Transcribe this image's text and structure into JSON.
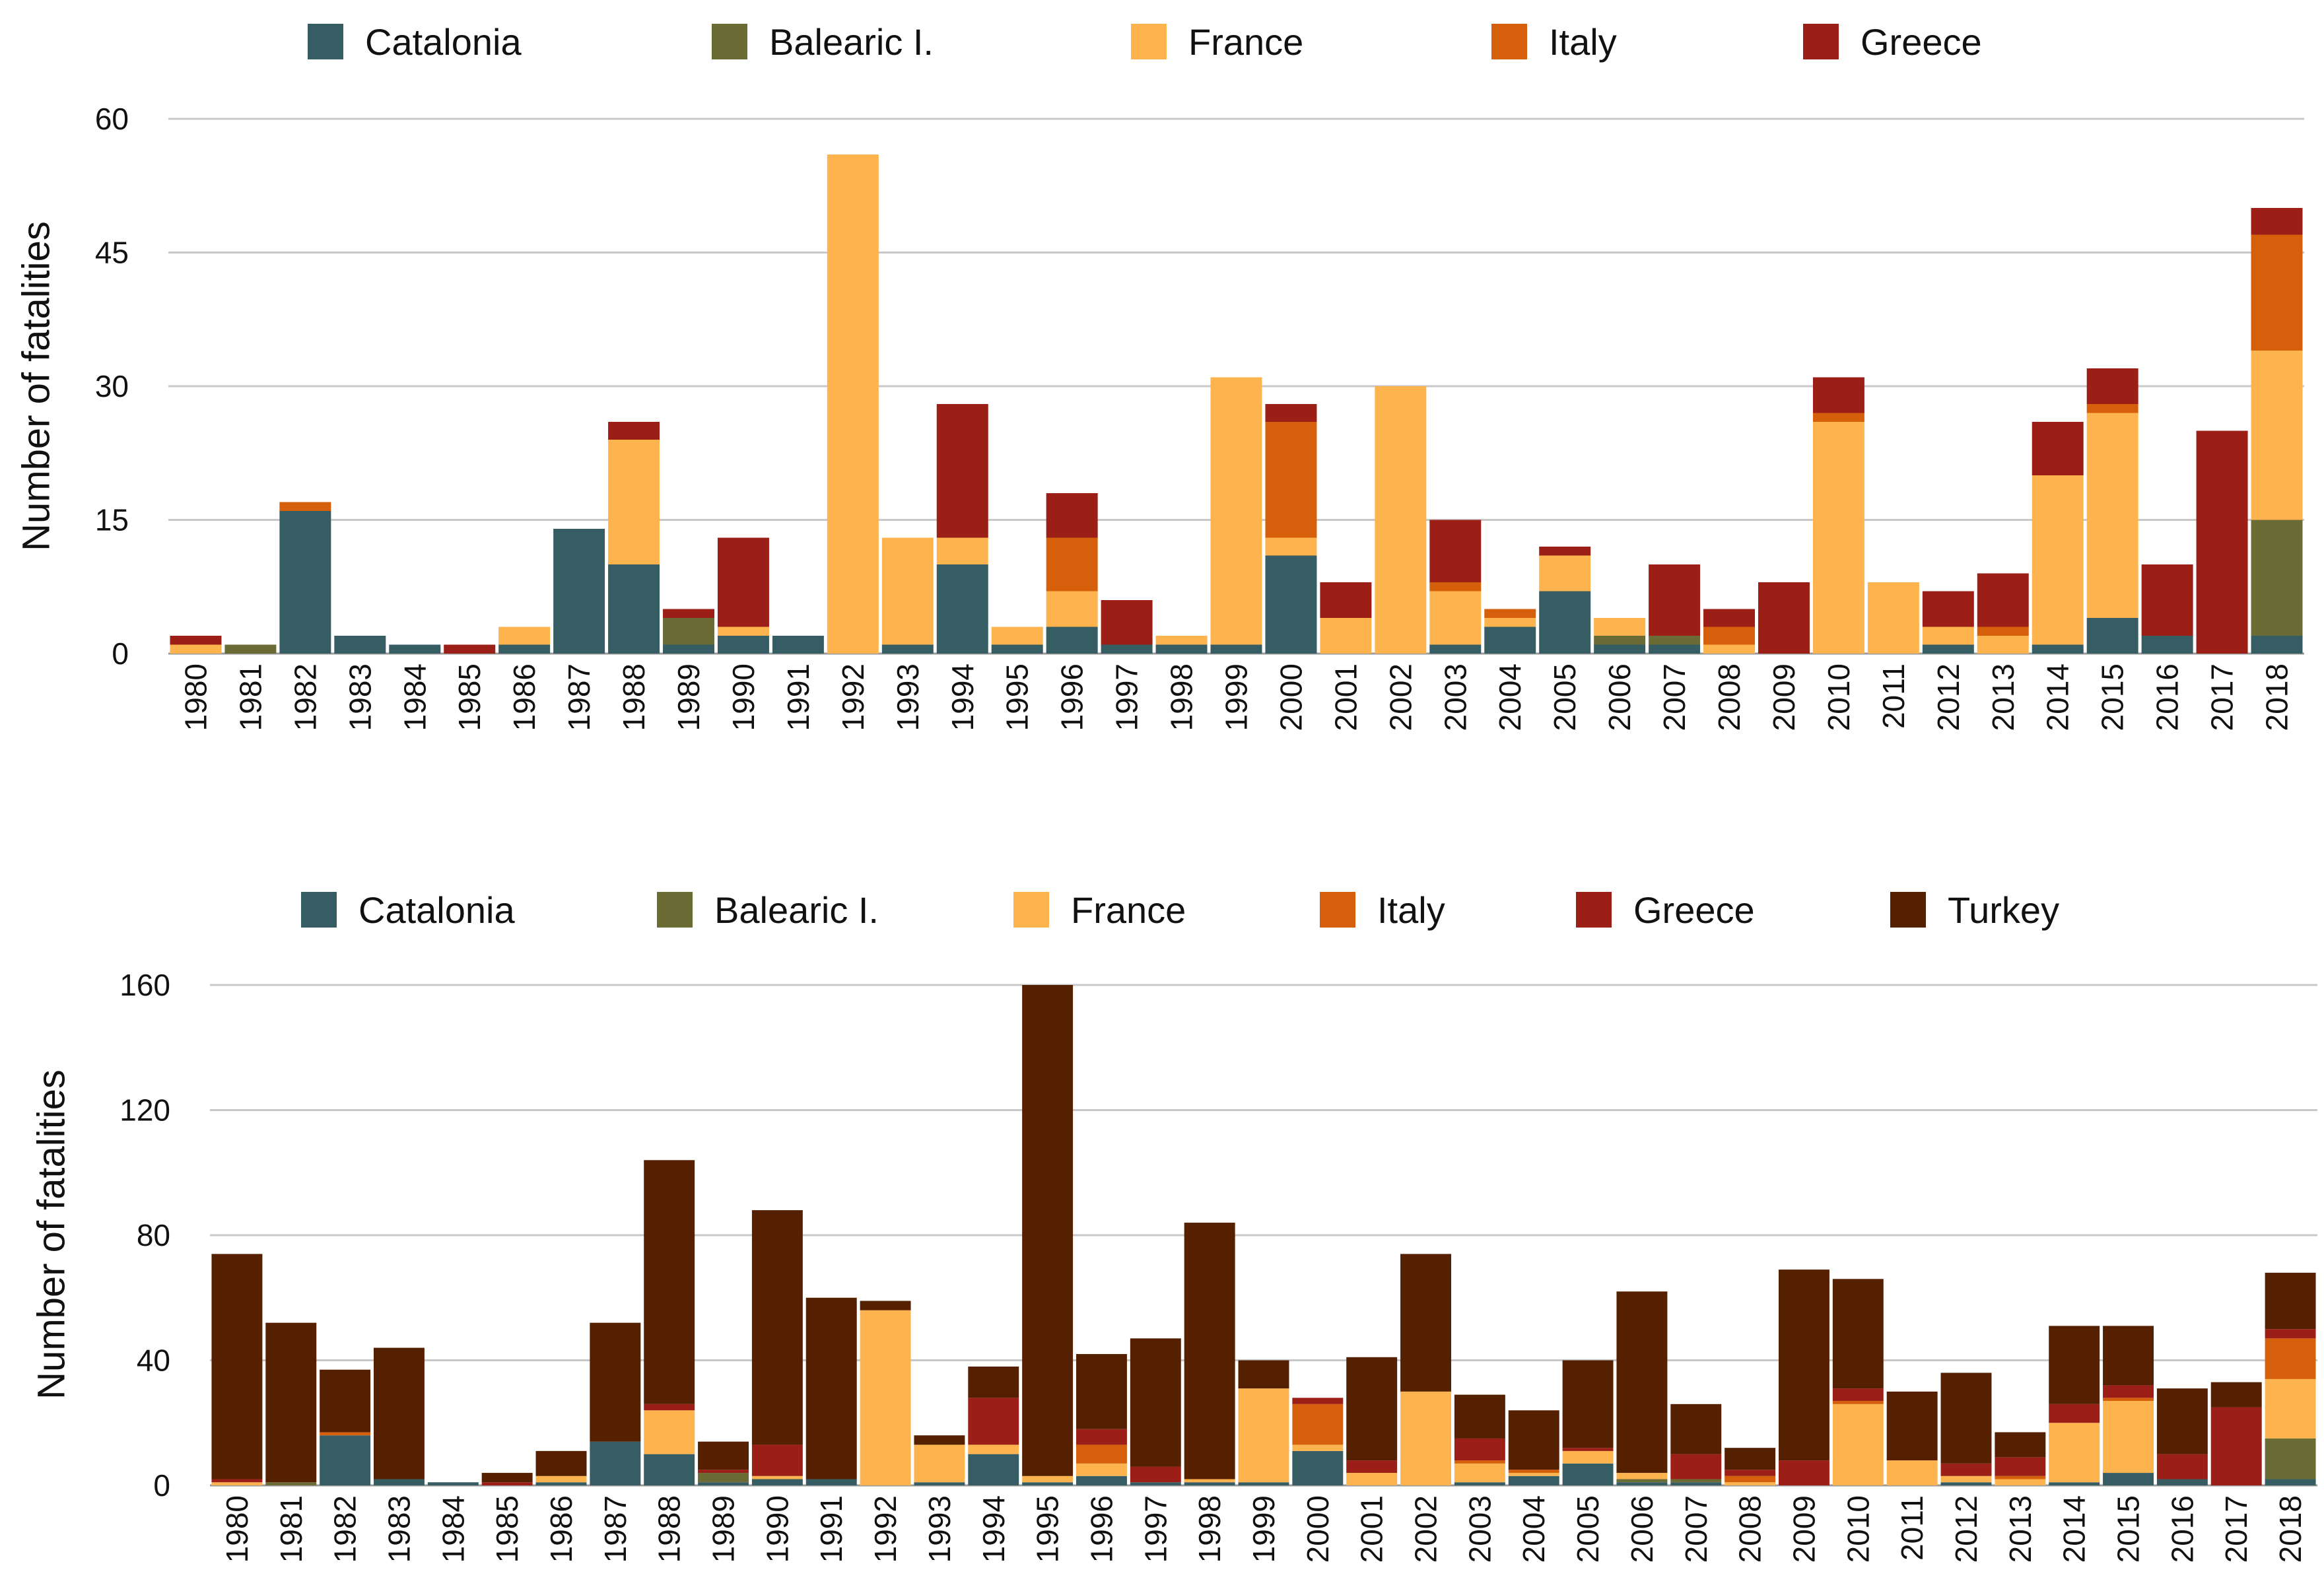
{
  "colors": {
    "Catalonia": "#365d63",
    "Balearic I.": "#6a6b35",
    "France": "#fdb44e",
    "Italy": "#d65f0b",
    "Greece": "#9b1f17",
    "Turkey": "#552000"
  },
  "chart_data": [
    {
      "type": "bar",
      "stacked": true,
      "title": "",
      "xlabel": "",
      "ylabel": "Number of fatalities",
      "ylim": [
        0,
        60
      ],
      "yticks": [
        0,
        15,
        30,
        45,
        60
      ],
      "legend": [
        "Catalonia",
        "Balearic I.",
        "France",
        "Italy",
        "Greece"
      ],
      "legend_position": "top",
      "categories": [
        "1980",
        "1981",
        "1982",
        "1983",
        "1984",
        "1985",
        "1986",
        "1987",
        "1988",
        "1989",
        "1990",
        "1991",
        "1992",
        "1993",
        "1994",
        "1995",
        "1996",
        "1997",
        "1998",
        "1999",
        "2000",
        "2001",
        "2002",
        "2003",
        "2004",
        "2005",
        "2006",
        "2007",
        "2008",
        "2009",
        "2010",
        "2011",
        "2012",
        "2013",
        "2014",
        "2015",
        "2016",
        "2017",
        "2018"
      ],
      "series": [
        {
          "name": "Catalonia",
          "values": [
            0,
            0,
            16,
            2,
            1,
            0,
            1,
            14,
            10,
            1,
            2,
            2,
            0,
            1,
            10,
            1,
            3,
            1,
            1,
            1,
            11,
            0,
            0,
            1,
            3,
            7,
            1,
            1,
            0,
            0,
            0,
            0,
            1,
            0,
            1,
            4,
            2,
            0,
            2
          ]
        },
        {
          "name": "Balearic I.",
          "values": [
            0,
            1,
            0,
            0,
            0,
            0,
            0,
            0,
            0,
            3,
            0,
            0,
            0,
            0,
            0,
            0,
            0,
            0,
            0,
            0,
            0,
            0,
            0,
            0,
            0,
            0,
            1,
            1,
            0,
            0,
            0,
            0,
            0,
            0,
            0,
            0,
            0,
            0,
            13
          ]
        },
        {
          "name": "France",
          "values": [
            1,
            0,
            0,
            0,
            0,
            0,
            2,
            0,
            14,
            0,
            1,
            0,
            56,
            12,
            3,
            2,
            4,
            0,
            1,
            30,
            2,
            4,
            30,
            6,
            1,
            4,
            2,
            0,
            1,
            0,
            26,
            8,
            2,
            2,
            19,
            23,
            0,
            0,
            19
          ]
        },
        {
          "name": "Italy",
          "values": [
            0,
            0,
            1,
            0,
            0,
            0,
            0,
            0,
            0,
            0,
            0,
            0,
            0,
            0,
            0,
            0,
            6,
            0,
            0,
            0,
            13,
            0,
            0,
            1,
            1,
            0,
            0,
            0,
            2,
            0,
            1,
            0,
            0,
            1,
            0,
            1,
            0,
            0,
            13
          ]
        },
        {
          "name": "Greece",
          "values": [
            1,
            0,
            0,
            0,
            0,
            1,
            0,
            0,
            2,
            1,
            10,
            0,
            0,
            0,
            15,
            0,
            5,
            5,
            0,
            0,
            2,
            4,
            0,
            7,
            0,
            1,
            0,
            8,
            2,
            8,
            4,
            0,
            4,
            6,
            6,
            4,
            8,
            25,
            3
          ]
        }
      ]
    },
    {
      "type": "bar",
      "stacked": true,
      "title": "",
      "xlabel": "",
      "ylabel": "Number of fatalities",
      "ylim": [
        0,
        160
      ],
      "yticks": [
        0,
        40,
        80,
        120,
        160
      ],
      "legend": [
        "Catalonia",
        "Balearic I.",
        "France",
        "Italy",
        "Greece",
        "Turkey"
      ],
      "legend_position": "top",
      "categories": [
        "1980",
        "1981",
        "1982",
        "1983",
        "1984",
        "1985",
        "1986",
        "1987",
        "1988",
        "1989",
        "1990",
        "1991",
        "1992",
        "1993",
        "1994",
        "1995",
        "1996",
        "1997",
        "1998",
        "1999",
        "2000",
        "2001",
        "2002",
        "2003",
        "2004",
        "2005",
        "2006",
        "2007",
        "2008",
        "2009",
        "2010",
        "2011",
        "2012",
        "2013",
        "2014",
        "2015",
        "2016",
        "2017",
        "2018"
      ],
      "series": [
        {
          "name": "Catalonia",
          "values": [
            0,
            0,
            16,
            2,
            1,
            0,
            1,
            14,
            10,
            1,
            2,
            2,
            0,
            1,
            10,
            1,
            3,
            1,
            1,
            1,
            11,
            0,
            0,
            1,
            3,
            7,
            1,
            1,
            0,
            0,
            0,
            0,
            1,
            0,
            1,
            4,
            2,
            0,
            2
          ]
        },
        {
          "name": "Balearic I.",
          "values": [
            0,
            1,
            0,
            0,
            0,
            0,
            0,
            0,
            0,
            3,
            0,
            0,
            0,
            0,
            0,
            0,
            0,
            0,
            0,
            0,
            0,
            0,
            0,
            0,
            0,
            0,
            1,
            1,
            0,
            0,
            0,
            0,
            0,
            0,
            0,
            0,
            0,
            0,
            13
          ]
        },
        {
          "name": "France",
          "values": [
            1,
            0,
            0,
            0,
            0,
            0,
            2,
            0,
            14,
            0,
            1,
            0,
            56,
            12,
            3,
            2,
            4,
            0,
            1,
            30,
            2,
            4,
            30,
            6,
            1,
            4,
            2,
            0,
            1,
            0,
            26,
            8,
            2,
            2,
            19,
            23,
            0,
            0,
            19
          ]
        },
        {
          "name": "Italy",
          "values": [
            0,
            0,
            1,
            0,
            0,
            0,
            0,
            0,
            0,
            0,
            0,
            0,
            0,
            0,
            0,
            0,
            6,
            0,
            0,
            0,
            13,
            0,
            0,
            1,
            1,
            0,
            0,
            0,
            2,
            0,
            1,
            0,
            0,
            1,
            0,
            1,
            0,
            0,
            13
          ]
        },
        {
          "name": "Greece",
          "values": [
            1,
            0,
            0,
            0,
            0,
            1,
            0,
            0,
            2,
            1,
            10,
            0,
            0,
            0,
            15,
            0,
            5,
            5,
            0,
            0,
            2,
            4,
            0,
            7,
            0,
            1,
            0,
            8,
            2,
            8,
            4,
            0,
            4,
            6,
            6,
            4,
            8,
            25,
            3
          ]
        },
        {
          "name": "Turkey",
          "values": [
            72,
            51,
            20,
            42,
            0,
            3,
            8,
            38,
            78,
            9,
            75,
            58,
            3,
            3,
            10,
            157,
            24,
            41,
            82,
            9,
            0,
            33,
            44,
            14,
            19,
            28,
            58,
            16,
            7,
            61,
            35,
            22,
            29,
            8,
            25,
            19,
            21,
            8,
            18
          ]
        }
      ]
    }
  ]
}
